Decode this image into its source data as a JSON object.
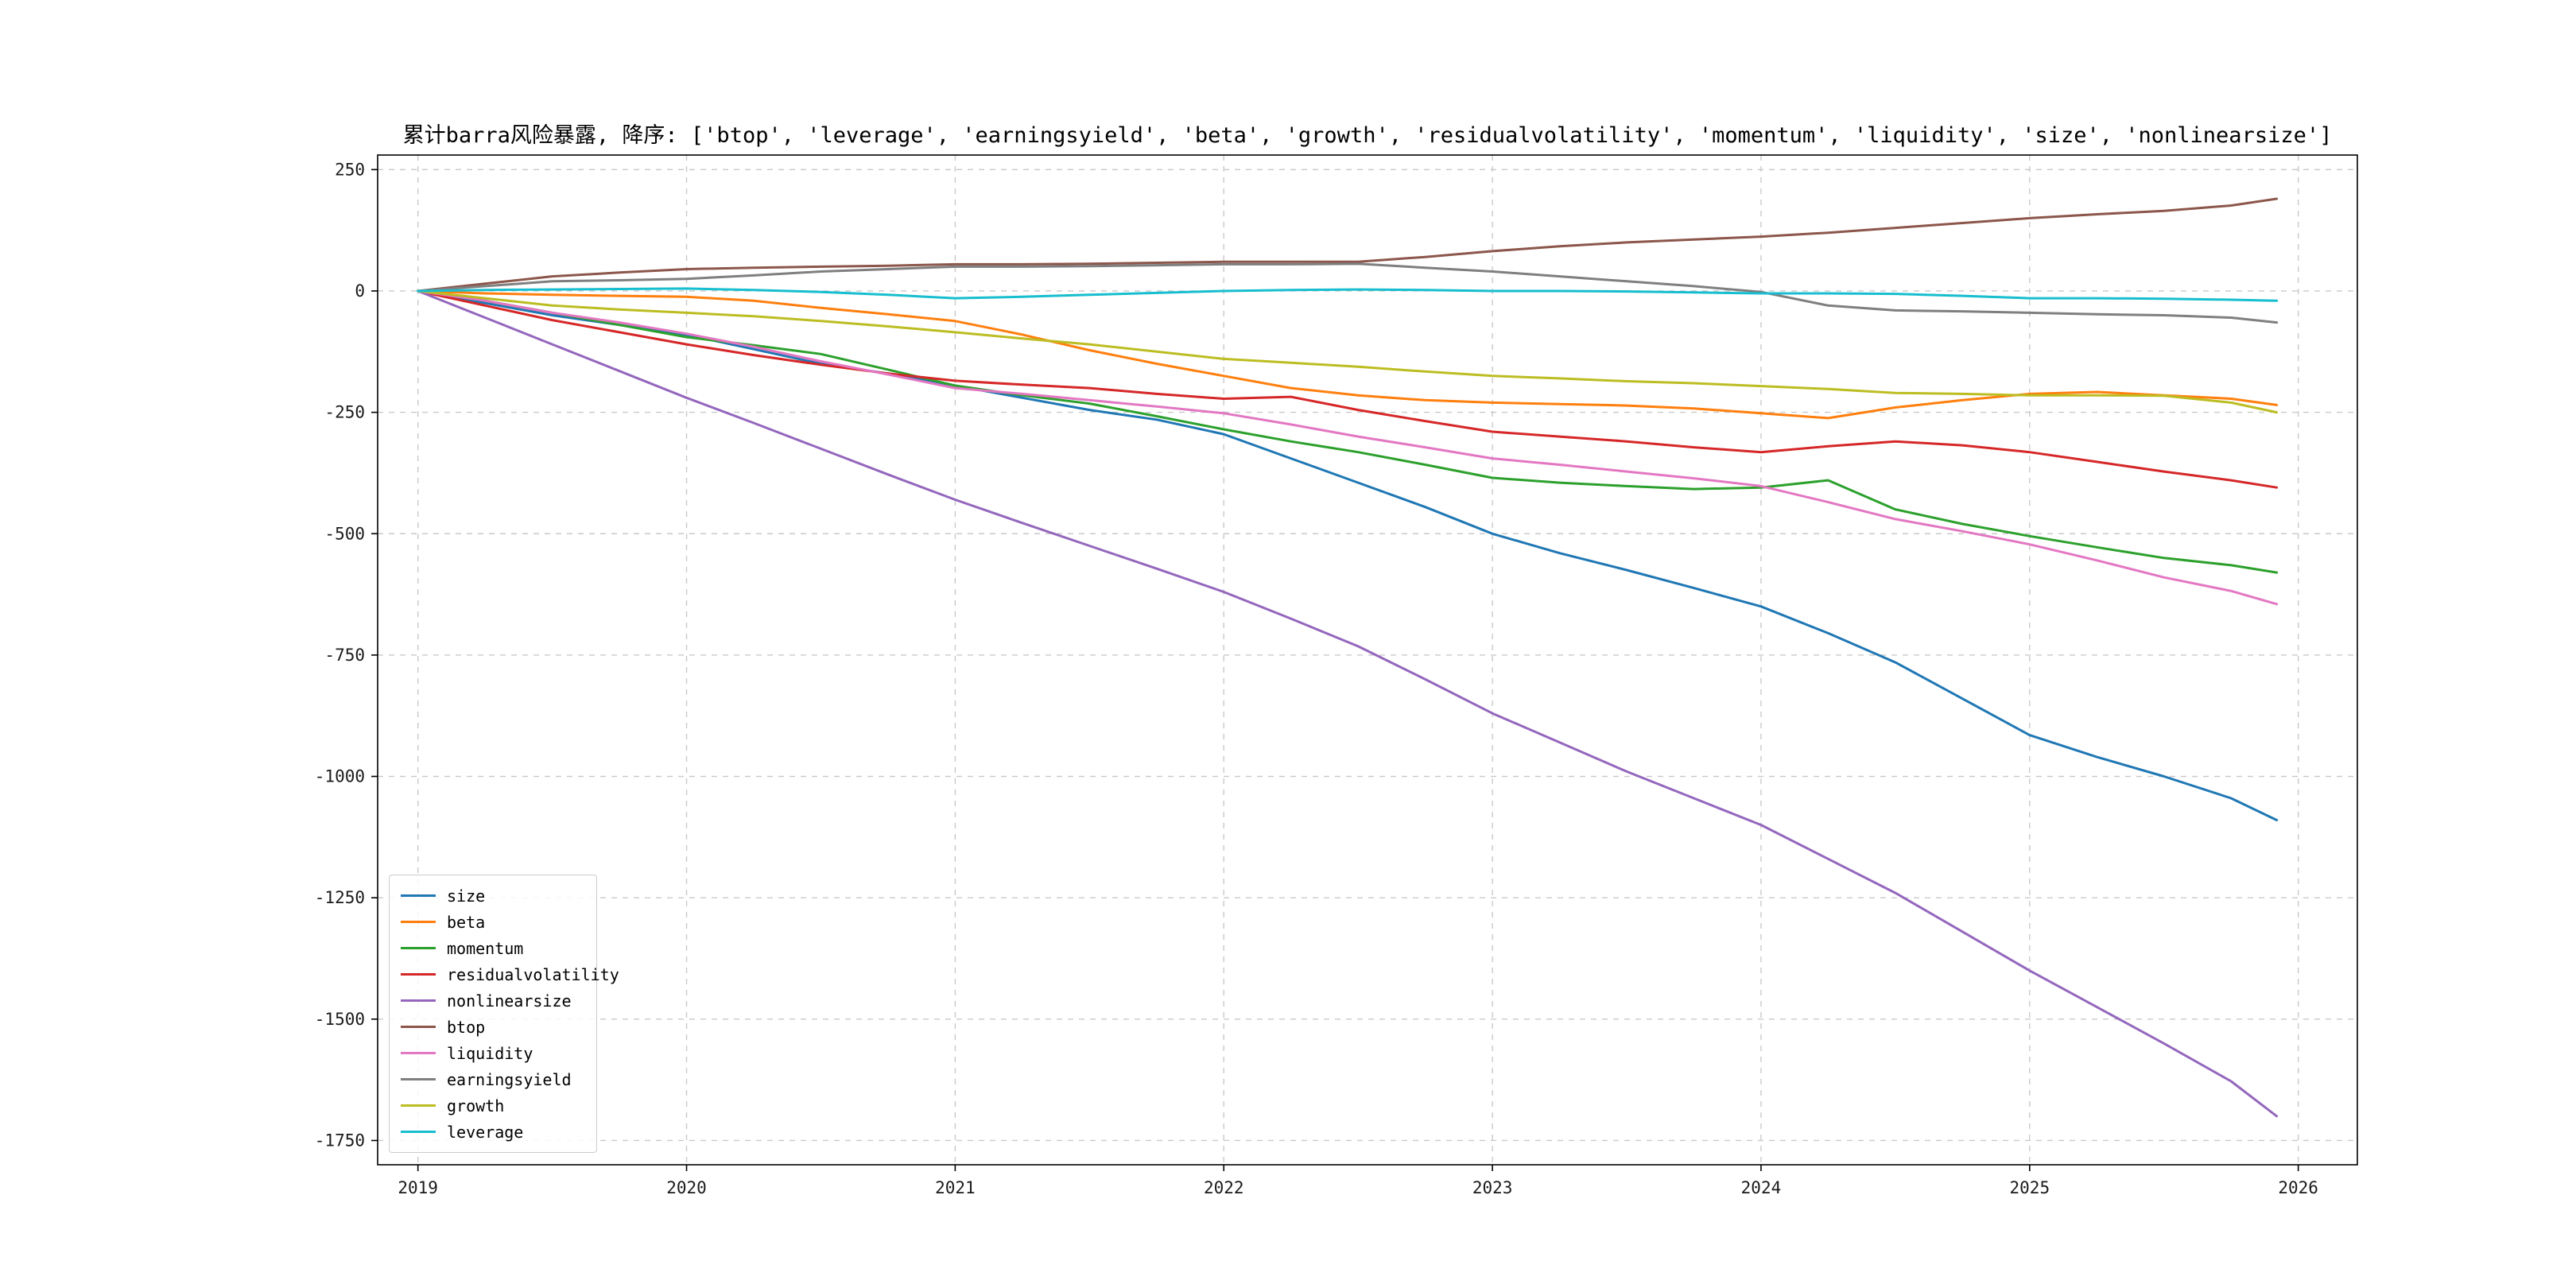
{
  "figure": {
    "title": "累计barra风险暴露, 降序: ['btop', 'leverage', 'earningsyield', 'beta', 'growth', 'residualvolatility', 'momentum', 'liquidity', 'size', 'nonlinearsize']"
  },
  "chart_data": {
    "type": "line",
    "title": "累计barra风险暴露, 降序: ['btop', 'leverage', 'earningsyield', 'beta', 'growth', 'residualvolatility', 'momentum', 'liquidity', 'size', 'nonlinearsize']",
    "xlabel": "",
    "ylabel": "",
    "grid": true,
    "legend_position": "lower left",
    "xlim": [
      2018.85,
      2026.22
    ],
    "ylim": [
      -1800,
      280
    ],
    "x_ticks": [
      2019,
      2020,
      2021,
      2022,
      2023,
      2024,
      2025,
      2026
    ],
    "y_ticks": [
      250,
      0,
      -250,
      -500,
      -750,
      -1000,
      -1250,
      -1500,
      -1750
    ],
    "x": [
      2019.0,
      2019.25,
      2019.5,
      2019.75,
      2020.0,
      2020.25,
      2020.5,
      2020.75,
      2021.0,
      2021.25,
      2021.5,
      2021.75,
      2022.0,
      2022.25,
      2022.5,
      2022.75,
      2023.0,
      2023.25,
      2023.5,
      2023.75,
      2024.0,
      2024.25,
      2024.5,
      2024.75,
      2025.0,
      2025.25,
      2025.5,
      2025.75,
      2025.92
    ],
    "series": [
      {
        "name": "size",
        "color": "#1f77b4",
        "values": [
          0,
          -25,
          -50,
          -70,
          -90,
          -120,
          -150,
          -170,
          -195,
          -220,
          -245,
          -265,
          -295,
          -345,
          -395,
          -445,
          -500,
          -540,
          -575,
          -612,
          -650,
          -705,
          -765,
          -840,
          -915,
          -960,
          -1000,
          -1045,
          -1090
        ]
      },
      {
        "name": "beta",
        "color": "#ff7f0e",
        "values": [
          0,
          -5,
          -8,
          -10,
          -12,
          -20,
          -35,
          -48,
          -62,
          -90,
          -122,
          -150,
          -175,
          -200,
          -215,
          -225,
          -230,
          -233,
          -236,
          -242,
          -252,
          -262,
          -240,
          -225,
          -212,
          -208,
          -215,
          -222,
          -235
        ]
      },
      {
        "name": "momentum",
        "color": "#2ca02c",
        "values": [
          0,
          -20,
          -45,
          -70,
          -95,
          -112,
          -130,
          -162,
          -195,
          -215,
          -232,
          -258,
          -285,
          -310,
          -332,
          -358,
          -385,
          -395,
          -402,
          -408,
          -405,
          -390,
          -450,
          -480,
          -505,
          -528,
          -550,
          -565,
          -580
        ]
      },
      {
        "name": "residualvolatility",
        "color": "#d62728",
        "values": [
          0,
          -30,
          -60,
          -85,
          -110,
          -132,
          -152,
          -170,
          -185,
          -193,
          -200,
          -212,
          -222,
          -218,
          -245,
          -268,
          -290,
          -300,
          -310,
          -322,
          -332,
          -320,
          -310,
          -318,
          -332,
          -352,
          -372,
          -390,
          -405
        ]
      },
      {
        "name": "nonlinearsize",
        "color": "#9467bd",
        "values": [
          0,
          -55,
          -110,
          -165,
          -220,
          -272,
          -325,
          -378,
          -430,
          -478,
          -525,
          -572,
          -620,
          -675,
          -732,
          -800,
          -870,
          -930,
          -990,
          -1045,
          -1100,
          -1170,
          -1240,
          -1320,
          -1400,
          -1475,
          -1550,
          -1628,
          -1700
        ]
      },
      {
        "name": "btop",
        "color": "#8c564b",
        "values": [
          0,
          15,
          30,
          38,
          45,
          48,
          50,
          52,
          55,
          55,
          56,
          58,
          60,
          60,
          60,
          70,
          82,
          92,
          100,
          106,
          112,
          120,
          130,
          140,
          150,
          158,
          165,
          176,
          190
        ]
      },
      {
        "name": "liquidity",
        "color": "#e377c2",
        "values": [
          0,
          -20,
          -45,
          -65,
          -88,
          -115,
          -145,
          -172,
          -200,
          -212,
          -225,
          -238,
          -252,
          -275,
          -300,
          -322,
          -345,
          -358,
          -372,
          -386,
          -402,
          -435,
          -470,
          -495,
          -522,
          -555,
          -590,
          -618,
          -645
        ]
      },
      {
        "name": "earningsyield",
        "color": "#7f7f7f",
        "values": [
          0,
          10,
          20,
          22,
          25,
          32,
          40,
          45,
          50,
          50,
          51,
          53,
          55,
          55,
          56,
          48,
          40,
          30,
          20,
          10,
          -2,
          -30,
          -40,
          -42,
          -45,
          -48,
          -50,
          -55,
          -65
        ]
      },
      {
        "name": "growth",
        "color": "#bcbd22",
        "values": [
          0,
          -15,
          -30,
          -38,
          -45,
          -52,
          -62,
          -73,
          -85,
          -98,
          -110,
          -125,
          -140,
          -148,
          -156,
          -166,
          -175,
          -180,
          -186,
          -190,
          -196,
          -202,
          -210,
          -212,
          -215,
          -215,
          -216,
          -230,
          -250
        ]
      },
      {
        "name": "leverage",
        "color": "#17becf",
        "values": [
          0,
          2,
          3,
          4,
          5,
          2,
          -2,
          -8,
          -15,
          -12,
          -8,
          -4,
          0,
          2,
          3,
          2,
          0,
          0,
          -1,
          -3,
          -5,
          -5,
          -6,
          -10,
          -15,
          -15,
          -16,
          -18,
          -20
        ]
      }
    ]
  }
}
